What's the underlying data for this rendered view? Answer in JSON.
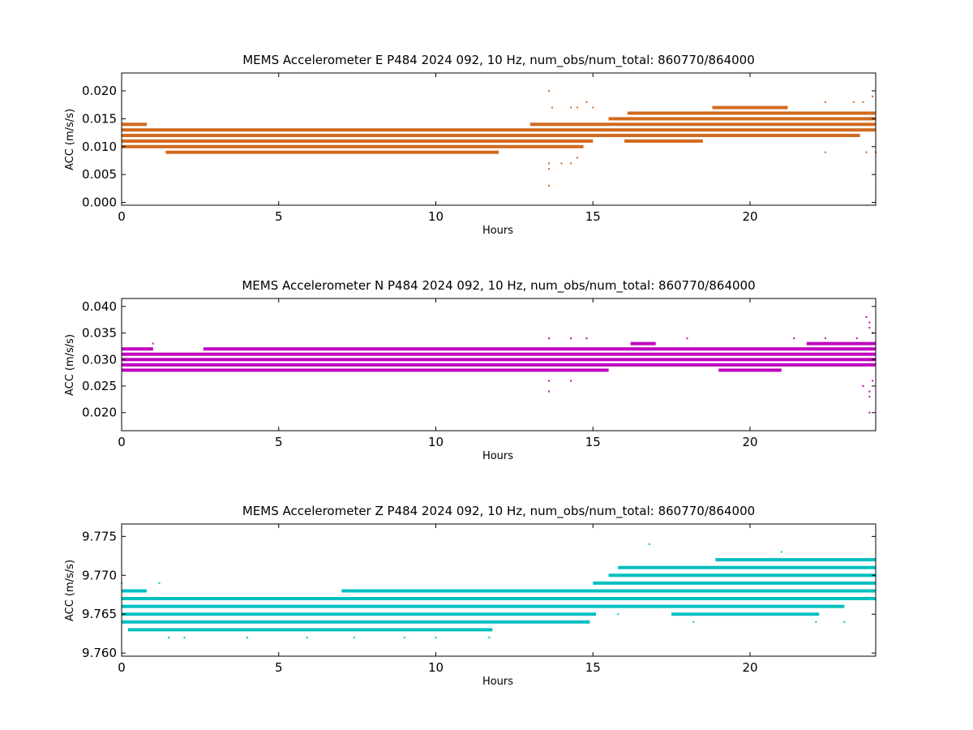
{
  "chart_data": [
    {
      "type": "scatter",
      "title": "MEMS Accelerometer E P484 2024 092, 10 Hz, num_obs/num_total: 860770/864000",
      "xlabel": "Hours",
      "ylabel": "ACC (m/s/s)",
      "xlim": [
        0,
        24
      ],
      "ylim": [
        -0.0005,
        0.0232
      ],
      "xticks": [
        0,
        5,
        10,
        15,
        20
      ],
      "xtick_labels": [
        "0",
        "5",
        "10",
        "15",
        "20"
      ],
      "yticks": [
        0.0,
        0.005,
        0.01,
        0.015,
        0.02
      ],
      "ytick_labels": [
        "0.000",
        "0.005",
        "0.010",
        "0.015",
        "0.020"
      ],
      "color": "#d2691e",
      "grid": false,
      "series": [
        {
          "levels": [
            {
              "y": 0.013,
              "x": [
                0,
                15.2
              ]
            },
            {
              "y": 0.012,
              "x": [
                0,
                15.3
              ]
            },
            {
              "y": 0.011,
              "x": [
                0,
                15.0
              ]
            },
            {
              "y": 0.01,
              "x": [
                0,
                14.7
              ]
            },
            {
              "y": 0.009,
              "x": [
                1.4,
                12.0
              ]
            },
            {
              "y": 0.014,
              "x": [
                0,
                0.8
              ]
            },
            {
              "y": 0.014,
              "x": [
                13.0,
                24
              ]
            },
            {
              "y": 0.013,
              "x": [
                15.2,
                24
              ]
            },
            {
              "y": 0.015,
              "x": [
                15.5,
                24
              ]
            },
            {
              "y": 0.016,
              "x": [
                16.1,
                24
              ]
            },
            {
              "y": 0.012,
              "x": [
                15.3,
                23.5
              ]
            },
            {
              "y": 0.011,
              "x": [
                16.0,
                18.5
              ]
            },
            {
              "y": 0.017,
              "x": [
                18.8,
                21.2
              ]
            }
          ],
          "points": [
            [
              13.6,
              0.02
            ],
            [
              13.6,
              0.003
            ],
            [
              13.7,
              0.017
            ],
            [
              14.3,
              0.017
            ],
            [
              14.5,
              0.017
            ],
            [
              14.8,
              0.018
            ],
            [
              15.0,
              0.017
            ],
            [
              13.6,
              0.007
            ],
            [
              13.6,
              0.006
            ],
            [
              14.0,
              0.007
            ],
            [
              14.5,
              0.008
            ],
            [
              14.3,
              0.007
            ],
            [
              23.6,
              0.018
            ],
            [
              23.9,
              0.019
            ],
            [
              22.4,
              0.018
            ],
            [
              24.0,
              0.009
            ],
            [
              23.7,
              0.009
            ],
            [
              22.4,
              0.009
            ],
            [
              23.3,
              0.018
            ]
          ]
        }
      ]
    },
    {
      "type": "scatter",
      "title": "MEMS Accelerometer N P484 2024 092, 10 Hz, num_obs/num_total: 860770/864000",
      "xlabel": "Hours",
      "ylabel": "ACC (m/s/s)",
      "xlim": [
        0,
        24
      ],
      "ylim": [
        0.0166,
        0.0415
      ],
      "xticks": [
        0,
        5,
        10,
        15,
        20
      ],
      "xtick_labels": [
        "0",
        "5",
        "10",
        "15",
        "20"
      ],
      "yticks": [
        0.02,
        0.025,
        0.03,
        0.035,
        0.04
      ],
      "ytick_labels": [
        "0.020",
        "0.025",
        "0.030",
        "0.035",
        "0.040"
      ],
      "color": "#bf00bf",
      "grid": false,
      "series": [
        {
          "levels": [
            {
              "y": 0.031,
              "x": [
                0,
                24
              ]
            },
            {
              "y": 0.03,
              "x": [
                0,
                24
              ]
            },
            {
              "y": 0.029,
              "x": [
                0,
                24
              ]
            },
            {
              "y": 0.032,
              "x": [
                0,
                1.0
              ]
            },
            {
              "y": 0.032,
              "x": [
                2.6,
                24
              ]
            },
            {
              "y": 0.028,
              "x": [
                0,
                15.5
              ]
            },
            {
              "y": 0.028,
              "x": [
                19.0,
                21.0
              ]
            },
            {
              "y": 0.033,
              "x": [
                16.2,
                17.0
              ]
            },
            {
              "y": 0.033,
              "x": [
                21.8,
                24
              ]
            }
          ],
          "points": [
            [
              23.7,
              0.038
            ],
            [
              23.8,
              0.037
            ],
            [
              23.8,
              0.036
            ],
            [
              23.9,
              0.035
            ],
            [
              23.8,
              0.024
            ],
            [
              23.8,
              0.023
            ],
            [
              23.8,
              0.02
            ],
            [
              23.6,
              0.025
            ],
            [
              23.9,
              0.026
            ],
            [
              13.6,
              0.024
            ],
            [
              13.6,
              0.034
            ],
            [
              14.3,
              0.034
            ],
            [
              14.8,
              0.034
            ],
            [
              13.6,
              0.026
            ],
            [
              14.3,
              0.026
            ],
            [
              18.0,
              0.034
            ],
            [
              21.4,
              0.034
            ],
            [
              22.4,
              0.034
            ],
            [
              23.4,
              0.034
            ],
            [
              1.0,
              0.033
            ]
          ]
        }
      ]
    },
    {
      "type": "scatter",
      "title": "MEMS Accelerometer Z P484 2024 092, 10 Hz, num_obs/num_total: 860770/864000",
      "xlabel": "Hours",
      "ylabel": "ACC (m/s/s)",
      "xlim": [
        0,
        24
      ],
      "ylim": [
        9.7596,
        9.7766
      ],
      "xticks": [
        0,
        5,
        10,
        15,
        20
      ],
      "xtick_labels": [
        "0",
        "5",
        "10",
        "15",
        "20"
      ],
      "yticks": [
        9.76,
        9.765,
        9.77,
        9.775
      ],
      "ytick_labels": [
        "9.760",
        "9.765",
        "9.770",
        "9.775"
      ],
      "color": "#00bfbf",
      "grid": false,
      "series": [
        {
          "levels": [
            {
              "y": 9.767,
              "x": [
                0,
                15.5
              ]
            },
            {
              "y": 9.766,
              "x": [
                0,
                15.3
              ]
            },
            {
              "y": 9.765,
              "x": [
                0,
                15.1
              ]
            },
            {
              "y": 9.764,
              "x": [
                0,
                14.9
              ]
            },
            {
              "y": 9.768,
              "x": [
                0,
                0.8
              ]
            },
            {
              "y": 9.768,
              "x": [
                12.0,
                24
              ]
            },
            {
              "y": 9.763,
              "x": [
                0.2,
                11.8
              ]
            },
            {
              "y": 9.769,
              "x": [
                15.0,
                24
              ]
            },
            {
              "y": 9.767,
              "x": [
                15.0,
                24
              ]
            },
            {
              "y": 9.77,
              "x": [
                15.5,
                24
              ]
            },
            {
              "y": 9.766,
              "x": [
                15.3,
                23.0
              ]
            },
            {
              "y": 9.771,
              "x": [
                15.8,
                24
              ]
            },
            {
              "y": 9.772,
              "x": [
                18.9,
                24
              ]
            },
            {
              "y": 9.765,
              "x": [
                17.5,
                22.2
              ]
            },
            {
              "y": 9.768,
              "x": [
                7.0,
                12.0
              ]
            }
          ],
          "points": [
            [
              16.8,
              9.774
            ],
            [
              21.0,
              9.773
            ],
            [
              1.2,
              9.769
            ],
            [
              0.0,
              9.769
            ],
            [
              1.5,
              9.762
            ],
            [
              2.0,
              9.762
            ],
            [
              4.0,
              9.762
            ],
            [
              5.9,
              9.762
            ],
            [
              7.4,
              9.762
            ],
            [
              9.0,
              9.762
            ],
            [
              10.0,
              9.762
            ],
            [
              11.7,
              9.762
            ],
            [
              22.1,
              9.764
            ],
            [
              23.0,
              9.764
            ],
            [
              18.2,
              9.764
            ],
            [
              15.8,
              9.765
            ]
          ]
        }
      ]
    }
  ]
}
